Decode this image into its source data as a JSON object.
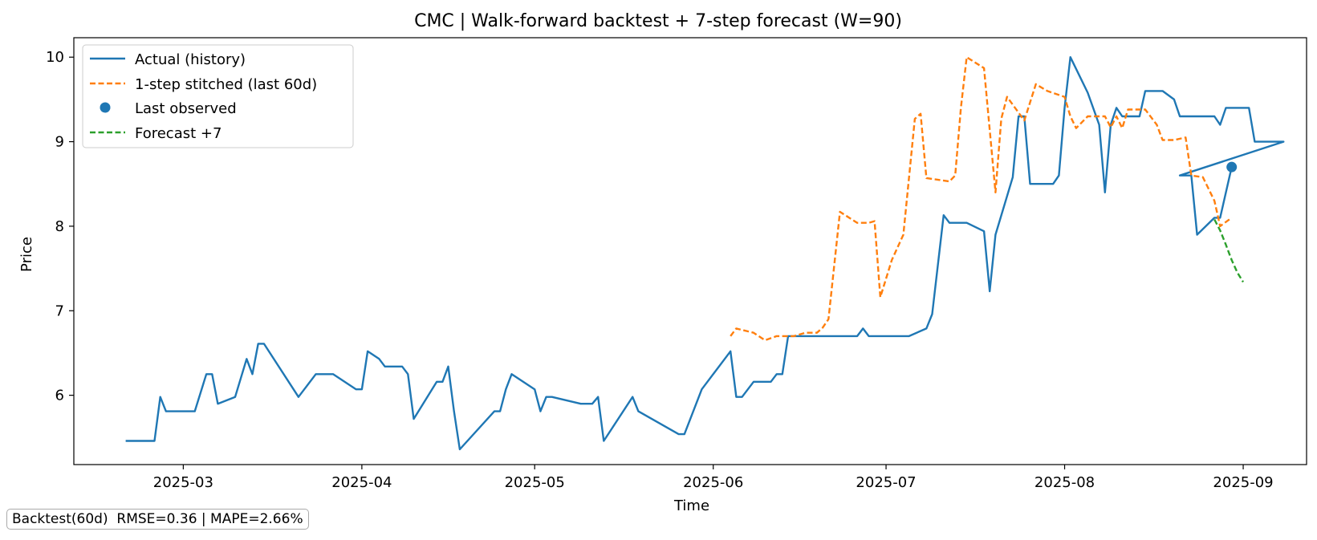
{
  "colors": {
    "actual": "#1f77b4",
    "stitched": "#ff7f0e",
    "forecast": "#2ca02c",
    "last_point": "#1f77b4"
  },
  "chart_data": {
    "type": "line",
    "title": "CMC | Walk-forward backtest + 7-step forecast (W=90)",
    "xlabel": "Time",
    "ylabel": "Price",
    "xlim": [
      "2025-02-10",
      "2025-09-12"
    ],
    "ylim": [
      5.18,
      10.23
    ],
    "x_ticks": [
      "2025-03-01",
      "2025-04-01",
      "2025-05-01",
      "2025-06-01",
      "2025-07-01",
      "2025-08-01",
      "2025-09-01"
    ],
    "x_tick_labels": [
      "2025-03",
      "2025-04",
      "2025-05",
      "2025-06",
      "2025-07",
      "2025-08",
      "2025-09"
    ],
    "y_ticks": [
      6,
      7,
      8,
      9,
      10
    ],
    "y_tick_labels": [
      "6",
      "7",
      "8",
      "9",
      "10"
    ],
    "legend_position": "top-left",
    "series": [
      {
        "name": "Actual (history)",
        "kind": "line",
        "style": "solid",
        "points": [
          [
            "2025-02-19",
            5.46
          ],
          [
            "2025-02-24",
            5.46
          ],
          [
            "2025-02-25",
            5.98
          ],
          [
            "2025-02-26",
            5.81
          ],
          [
            "2025-02-28",
            5.81
          ],
          [
            "2025-03-03",
            5.81
          ],
          [
            "2025-03-05",
            6.25
          ],
          [
            "2025-03-06",
            6.25
          ],
          [
            "2025-03-07",
            5.9
          ],
          [
            "2025-03-10",
            5.98
          ],
          [
            "2025-03-12",
            6.43
          ],
          [
            "2025-03-13",
            6.25
          ],
          [
            "2025-03-14",
            6.61
          ],
          [
            "2025-03-15",
            6.61
          ],
          [
            "2025-03-21",
            5.98
          ],
          [
            "2025-03-24",
            6.25
          ],
          [
            "2025-03-26",
            6.25
          ],
          [
            "2025-03-27",
            6.25
          ],
          [
            "2025-03-31",
            6.07
          ],
          [
            "2025-04-01",
            6.07
          ],
          [
            "2025-04-02",
            6.52
          ],
          [
            "2025-04-04",
            6.43
          ],
          [
            "2025-04-05",
            6.34
          ],
          [
            "2025-04-07",
            6.34
          ],
          [
            "2025-04-08",
            6.34
          ],
          [
            "2025-04-09",
            6.25
          ],
          [
            "2025-04-10",
            5.72
          ],
          [
            "2025-04-14",
            6.16
          ],
          [
            "2025-04-15",
            6.16
          ],
          [
            "2025-04-16",
            6.34
          ],
          [
            "2025-04-17",
            5.81
          ],
          [
            "2025-04-18",
            5.36
          ],
          [
            "2025-04-24",
            5.81
          ],
          [
            "2025-04-25",
            5.81
          ],
          [
            "2025-04-26",
            6.07
          ],
          [
            "2025-04-27",
            6.25
          ],
          [
            "2025-05-01",
            6.07
          ],
          [
            "2025-05-02",
            5.81
          ],
          [
            "2025-05-03",
            5.98
          ],
          [
            "2025-05-04",
            5.98
          ],
          [
            "2025-05-09",
            5.9
          ],
          [
            "2025-05-10",
            5.9
          ],
          [
            "2025-05-11",
            5.9
          ],
          [
            "2025-05-12",
            5.98
          ],
          [
            "2025-05-13",
            5.46
          ],
          [
            "2025-05-18",
            5.98
          ],
          [
            "2025-05-19",
            5.81
          ],
          [
            "2025-05-26",
            5.54
          ],
          [
            "2025-05-27",
            5.54
          ],
          [
            "2025-05-30",
            6.07
          ],
          [
            "2025-06-04",
            6.52
          ],
          [
            "2025-06-05",
            5.98
          ],
          [
            "2025-06-06",
            5.98
          ],
          [
            "2025-06-08",
            6.16
          ],
          [
            "2025-06-11",
            6.16
          ],
          [
            "2025-06-12",
            6.25
          ],
          [
            "2025-06-13",
            6.25
          ],
          [
            "2025-06-14",
            6.7
          ],
          [
            "2025-06-18",
            6.7
          ],
          [
            "2025-06-20",
            6.7
          ],
          [
            "2025-06-26",
            6.7
          ],
          [
            "2025-06-27",
            6.79
          ],
          [
            "2025-06-28",
            6.7
          ],
          [
            "2025-07-05",
            6.7
          ],
          [
            "2025-07-08",
            6.79
          ],
          [
            "2025-07-09",
            6.96
          ],
          [
            "2025-07-11",
            8.13
          ],
          [
            "2025-07-12",
            8.04
          ],
          [
            "2025-07-15",
            8.04
          ],
          [
            "2025-07-18",
            7.94
          ],
          [
            "2025-07-19",
            7.23
          ],
          [
            "2025-07-20",
            7.9
          ],
          [
            "2025-07-23",
            8.58
          ],
          [
            "2025-07-24",
            9.3
          ],
          [
            "2025-07-25",
            9.3
          ],
          [
            "2025-07-26",
            8.5
          ],
          [
            "2025-07-30",
            8.5
          ],
          [
            "2025-07-31",
            8.6
          ],
          [
            "2025-08-01",
            9.4
          ],
          [
            "2025-08-02",
            10.0
          ],
          [
            "2025-08-05",
            9.58
          ],
          [
            "2025-08-07",
            9.2
          ],
          [
            "2025-08-08",
            8.4
          ],
          [
            "2025-08-09",
            9.2
          ],
          [
            "2025-08-10",
            9.4
          ],
          [
            "2025-08-11",
            9.3
          ],
          [
            "2025-08-14",
            9.3
          ],
          [
            "2025-08-15",
            9.6
          ],
          [
            "2025-08-18",
            9.6
          ],
          [
            "2025-08-20",
            9.5
          ],
          [
            "2025-08-21",
            9.3
          ],
          [
            "2025-08-24",
            9.3
          ],
          [
            "2025-08-27",
            9.3
          ],
          [
            "2025-08-28",
            9.2
          ],
          [
            "2025-08-29",
            9.4
          ],
          [
            "2025-08-31",
            9.4
          ],
          [
            "2025-09-02",
            9.4
          ],
          [
            "2025-09-03",
            9.0
          ],
          [
            "2025-09-06",
            9.0
          ],
          [
            "2025-09-08",
            9.0
          ],
          [
            "2025-08-21",
            8.6
          ],
          [
            "2025-08-23",
            8.6
          ],
          [
            "2025-08-24",
            7.9
          ],
          [
            "2025-08-27",
            8.1
          ],
          [
            "2025-08-28",
            8.1
          ],
          [
            "2025-08-30",
            8.7
          ]
        ]
      },
      {
        "name": "1-step stitched (last 60d)",
        "kind": "line",
        "style": "dashed",
        "points": [
          [
            "2025-06-04",
            6.7
          ],
          [
            "2025-06-05",
            6.79
          ],
          [
            "2025-06-08",
            6.74
          ],
          [
            "2025-06-10",
            6.65
          ],
          [
            "2025-06-12",
            6.7
          ],
          [
            "2025-06-15",
            6.7
          ],
          [
            "2025-06-17",
            6.74
          ],
          [
            "2025-06-19",
            6.74
          ],
          [
            "2025-06-20",
            6.8
          ],
          [
            "2025-06-21",
            6.9
          ],
          [
            "2025-06-23",
            8.17
          ],
          [
            "2025-06-26",
            8.04
          ],
          [
            "2025-06-28",
            8.04
          ],
          [
            "2025-06-29",
            8.06
          ],
          [
            "2025-06-30",
            7.16
          ],
          [
            "2025-07-02",
            7.6
          ],
          [
            "2025-07-04",
            7.9
          ],
          [
            "2025-07-06",
            9.27
          ],
          [
            "2025-07-07",
            9.33
          ],
          [
            "2025-07-08",
            8.57
          ],
          [
            "2025-07-12",
            8.53
          ],
          [
            "2025-07-13",
            8.6
          ],
          [
            "2025-07-14",
            9.4
          ],
          [
            "2025-07-15",
            10.0
          ],
          [
            "2025-07-18",
            9.87
          ],
          [
            "2025-07-20",
            8.4
          ],
          [
            "2025-07-21",
            9.27
          ],
          [
            "2025-07-22",
            9.53
          ],
          [
            "2025-07-25",
            9.25
          ],
          [
            "2025-07-27",
            9.68
          ],
          [
            "2025-07-29",
            9.6
          ],
          [
            "2025-08-01",
            9.53
          ],
          [
            "2025-08-02",
            9.3
          ],
          [
            "2025-08-03",
            9.16
          ],
          [
            "2025-08-05",
            9.3
          ],
          [
            "2025-08-08",
            9.3
          ],
          [
            "2025-08-09",
            9.17
          ],
          [
            "2025-08-10",
            9.3
          ],
          [
            "2025-08-11",
            9.16
          ],
          [
            "2025-08-12",
            9.38
          ],
          [
            "2025-08-14",
            9.38
          ],
          [
            "2025-08-15",
            9.38
          ],
          [
            "2025-08-17",
            9.2
          ],
          [
            "2025-08-18",
            9.02
          ],
          [
            "2025-08-20",
            9.02
          ],
          [
            "2025-08-22",
            9.05
          ],
          [
            "2025-08-23",
            8.6
          ],
          [
            "2025-08-25",
            8.58
          ],
          [
            "2025-08-27",
            8.3
          ],
          [
            "2025-08-28",
            8.0
          ],
          [
            "2025-08-30",
            8.1
          ]
        ]
      },
      {
        "name": "Last observed",
        "kind": "point",
        "points": [
          [
            "2025-08-30",
            8.7
          ]
        ]
      },
      {
        "name": "Forecast +7",
        "kind": "line",
        "style": "dashed",
        "points": [
          [
            "2025-08-27",
            8.08
          ],
          [
            "2025-08-28",
            7.95
          ],
          [
            "2025-08-29",
            7.78
          ],
          [
            "2025-08-30",
            7.6
          ],
          [
            "2025-08-31",
            7.45
          ],
          [
            "2025-09-01",
            7.34
          ]
        ]
      }
    ],
    "annotation": "Backtest(60d)  RMSE=0.36 | MAPE=2.66%"
  }
}
